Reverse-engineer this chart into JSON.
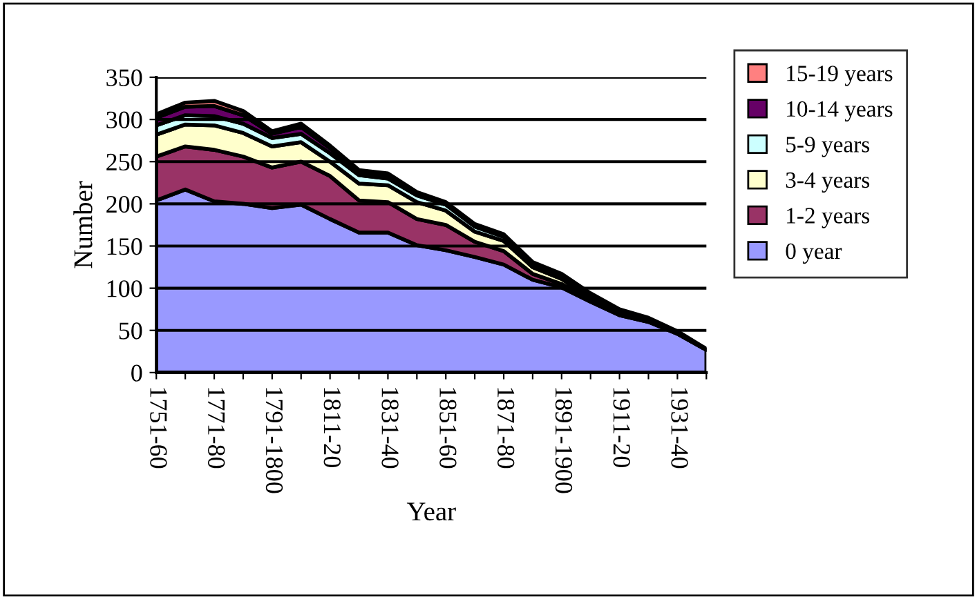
{
  "chart_data": {
    "type": "area",
    "stacked": true,
    "xlabel": "Year",
    "ylabel": "Number",
    "categories": [
      "1751-60",
      null,
      "1771-80",
      null,
      "1791-1800",
      null,
      "1811-20",
      null,
      "1831-40",
      null,
      "1851-60",
      null,
      "1871-80",
      null,
      "1891-1900",
      null,
      "1911-20",
      null,
      "1931-40",
      null
    ],
    "series": [
      {
        "name": "0 year",
        "color": "#9999ff",
        "values": [
          204,
          217,
          203,
          200,
          195,
          199,
          182,
          166,
          166,
          151,
          145,
          137,
          128,
          110,
          101,
          84,
          68,
          60,
          46,
          27
        ]
      },
      {
        "name": "1-2 years",
        "color": "#993366",
        "values": [
          52,
          51,
          61,
          56,
          48,
          51,
          51,
          38,
          36,
          31,
          30,
          18,
          16,
          7,
          4,
          2,
          1,
          1,
          0,
          0
        ]
      },
      {
        "name": "3-4 years",
        "color": "#ffffcc",
        "values": [
          26,
          26,
          29,
          28,
          25,
          23,
          17,
          20,
          20,
          20,
          17,
          12,
          12,
          8,
          6,
          3,
          2,
          1,
          0,
          0
        ]
      },
      {
        "name": "5-9 years",
        "color": "#ccffff",
        "values": [
          11,
          11,
          11,
          11,
          10,
          10,
          10,
          10,
          8,
          8,
          7,
          6,
          5,
          4,
          4,
          3,
          2,
          1,
          1,
          0
        ]
      },
      {
        "name": "10-14 years",
        "color": "#660066",
        "values": [
          9,
          10,
          12,
          10,
          5,
          8,
          6,
          4,
          4,
          3,
          2,
          2,
          2,
          1,
          1,
          1,
          1,
          1,
          1,
          1
        ]
      },
      {
        "name": "15-19 years",
        "color": "#ff8080",
        "values": [
          4,
          5,
          6,
          5,
          3,
          4,
          3,
          2,
          2,
          1,
          1,
          1,
          1,
          1,
          1,
          1,
          1,
          1,
          1,
          0
        ]
      }
    ],
    "ylim": [
      0,
      350
    ],
    "yticks": [
      0,
      50,
      100,
      150,
      200,
      250,
      300,
      350
    ],
    "grid": "y",
    "legend": "right"
  }
}
